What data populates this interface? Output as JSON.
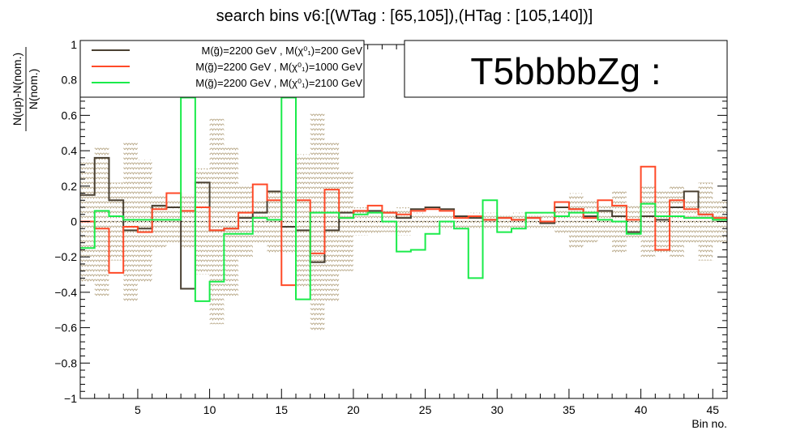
{
  "chart_data": {
    "type": "line",
    "title": "search bins v6:[(WTag : [65,105]),(HTag : [105,140])]",
    "xlabel": "Bin no.",
    "ylabel_num": "N(up)-N(nom.)",
    "ylabel_den": "N(nom.)",
    "xlim": [
      1,
      46
    ],
    "ylim": [
      -1,
      1
    ],
    "x_ticks": [
      5,
      10,
      15,
      20,
      25,
      30,
      35,
      40,
      45
    ],
    "y_ticks": [
      -1,
      -0.8,
      -0.6,
      -0.4,
      -0.2,
      0,
      0.2,
      0.4,
      0.6,
      0.8,
      1
    ],
    "y_tick_labels": [
      "−1",
      "−0.8",
      "−0.6",
      "−0.4",
      "−0.2",
      "0",
      "0.2",
      "0.4",
      "0.6",
      "0.8",
      "1"
    ],
    "x_tick_labels": [
      "5",
      "10",
      "15",
      "20",
      "25",
      "30",
      "35",
      "40",
      "45"
    ],
    "grid": false,
    "legend_placement": "top-left",
    "tag_text": "T5bbbbZg :",
    "band": {
      "color": "#b8a888",
      "halfwidth": [
        0.35,
        0.42,
        0.22,
        0.45,
        0.35,
        0.15,
        0.12,
        0.15,
        0.3,
        0.58,
        0.42,
        0.2,
        0.12,
        0.18,
        0.18,
        0.38,
        0.62,
        0.45,
        0.28,
        0.08,
        0.07,
        0.06,
        0.08,
        0.05,
        0.04,
        0.04,
        0.04,
        0.05,
        0.05,
        0.04,
        0.05,
        0.05,
        0.05,
        0.07,
        0.16,
        0.12,
        0.1,
        0.18,
        0.1,
        0.2,
        0.18,
        0.2,
        0.12,
        0.22,
        0.12
      ]
    },
    "series": [
      {
        "name": "M(g̃)=2200 GeV , M(χ₁⁰)=200 GeV",
        "legend_label": "M(g̃)=2200 GeV , M(χ⁰₁)=200 GeV",
        "color": "#4a4032",
        "values": [
          0.15,
          0.36,
          0.12,
          -0.05,
          -0.04,
          0.09,
          0.08,
          -0.38,
          0.22,
          -0.05,
          -0.04,
          0.02,
          0.05,
          0.17,
          -0.03,
          -0.05,
          -0.23,
          -0.05,
          0.05,
          0.06,
          0.06,
          0.05,
          0.02,
          0.07,
          0.08,
          0.07,
          0.03,
          0.02,
          0.01,
          0.02,
          0.01,
          0.02,
          -0.01,
          0.08,
          0.07,
          0.03,
          0.06,
          0.03,
          -0.06,
          0.03,
          0.01,
          0.08,
          0.17,
          0.04,
          0.01
        ]
      },
      {
        "name": "M(g̃)=2200 GeV , M(χ₁⁰)=1000 GeV",
        "legend_label": "M(g̃)=2200 GeV , M(χ⁰₁)=1000 GeV",
        "color": "#ff4a28",
        "values": [
          0.0,
          -0.04,
          -0.29,
          -0.03,
          -0.06,
          0.07,
          0.16,
          0.06,
          0.08,
          -0.05,
          -0.04,
          0.05,
          0.21,
          0.12,
          -0.36,
          0.12,
          -0.18,
          0.18,
          0.02,
          0.06,
          0.09,
          0.05,
          0.04,
          0.06,
          0.07,
          0.06,
          0.02,
          0.03,
          0.01,
          0.02,
          0.01,
          0.02,
          0.0,
          0.11,
          0.07,
          0.02,
          0.12,
          0.09,
          0.01,
          0.31,
          -0.16,
          0.12,
          0.07,
          0.04,
          0.02
        ]
      },
      {
        "name": "M(g̃)=2200 GeV , M(χ₁⁰)=2100 GeV",
        "legend_label": "M(g̃)=2200 GeV , M(χ⁰₁)=2100 GeV",
        "color": "#1aeb4a",
        "values": [
          -0.15,
          0.06,
          0.03,
          0.01,
          0.01,
          0.01,
          0.01,
          0.7,
          -0.45,
          -0.34,
          -0.07,
          -0.07,
          0.02,
          0.01,
          0.7,
          -0.44,
          0.05,
          0.05,
          0.02,
          0.04,
          0.05,
          0.0,
          -0.17,
          -0.16,
          -0.07,
          0.0,
          -0.04,
          -0.32,
          0.12,
          -0.06,
          -0.04,
          0.05,
          0.05,
          0.03,
          0.05,
          0.05,
          0.01,
          0.0,
          -0.07,
          0.1,
          0.03,
          0.03,
          0.02,
          0.02,
          0.01
        ]
      }
    ]
  }
}
